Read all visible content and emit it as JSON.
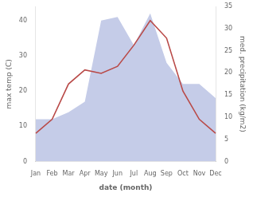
{
  "chart_data": {
    "type": "line",
    "categories": [
      "Jan",
      "Feb",
      "Mar",
      "Apr",
      "May",
      "Jun",
      "Jul",
      "Aug",
      "Sep",
      "Oct",
      "Nov",
      "Dec"
    ],
    "series": [
      {
        "type": "area",
        "color": "#c5cce8",
        "values": [
          12,
          12,
          14,
          17,
          40,
          41,
          33,
          42,
          28,
          22,
          22,
          18
        ]
      },
      {
        "type": "line",
        "color": "#b94a48",
        "values": [
          8,
          12,
          22,
          26,
          25,
          27,
          33,
          40,
          35,
          20,
          12,
          8
        ]
      }
    ],
    "xlabel": "date (month)",
    "ylabel": "max temp (C)",
    "y2label": "med. precipitation (kg/m2)",
    "ylim": [
      0,
      44
    ],
    "yticks": [
      0,
      10,
      20,
      30,
      40
    ],
    "y2lim": [
      0,
      35
    ],
    "y2ticks": [
      0,
      5,
      10,
      15,
      20,
      25,
      30,
      35
    ],
    "grid": false
  }
}
